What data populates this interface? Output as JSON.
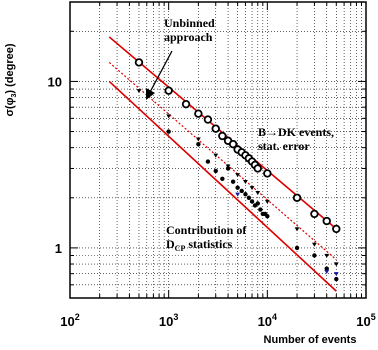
{
  "chart_data": {
    "type": "scatter",
    "xscale": "log",
    "yscale": "log",
    "xlim": [
      100,
      100000
    ],
    "ylim": [
      0.5,
      30
    ],
    "xlabel": "Number of events",
    "ylabel_main": "σ(φ",
    "ylabel_sub": "3",
    "ylabel_tail": ") (degree)",
    "x_ticks": [
      {
        "value": 100,
        "base": "10",
        "exp": "2"
      },
      {
        "value": 1000,
        "base": "10",
        "exp": "3"
      },
      {
        "value": 10000,
        "base": "10",
        "exp": "4"
      },
      {
        "value": 100000,
        "base": "10",
        "exp": "5"
      }
    ],
    "y_ticks": [
      {
        "value": 1,
        "label": "1"
      },
      {
        "value": 10,
        "label": "10"
      }
    ],
    "grid": true,
    "colors": {
      "line": "#dd0000",
      "points": "#000000",
      "blue_points": "#1a1aa8"
    },
    "lines": [
      {
        "name": "",
        "style": "solid",
        "x": [
          250,
          50000
        ],
        "y": [
          18.5,
          1.3
        ]
      },
      {
        "name": "",
        "style": "dotted",
        "x": [
          250,
          50000
        ],
        "y": [
          13.0,
          0.85
        ]
      },
      {
        "name": "",
        "style": "solid",
        "x": [
          250,
          50000
        ],
        "y": [
          10.0,
          0.55
        ]
      }
    ],
    "series": [
      {
        "name": "",
        "marker": "open-circle",
        "x": [
          500,
          1000,
          1500,
          2000,
          2500,
          3000,
          3500,
          4000,
          4500,
          5000,
          5500,
          6000,
          6500,
          7000,
          7500,
          8000,
          10000,
          20000,
          30000,
          40000,
          50000
        ],
        "y": [
          13.0,
          8.8,
          7.3,
          6.4,
          5.9,
          5.2,
          4.7,
          4.4,
          4.2,
          3.9,
          3.75,
          3.6,
          3.45,
          3.3,
          3.15,
          3.0,
          2.8,
          2.0,
          1.6,
          1.45,
          1.3
        ]
      },
      {
        "name": "",
        "marker": "filled-triangle",
        "x": [
          500,
          1000,
          2000,
          3000,
          4000,
          5000,
          6000,
          7000,
          8000,
          10000,
          20000,
          30000,
          40000,
          50000
        ],
        "y": [
          8.8,
          6.2,
          4.5,
          3.6,
          3.1,
          2.75,
          2.5,
          2.3,
          2.15,
          1.9,
          1.3,
          1.05,
          0.9,
          0.8
        ]
      },
      {
        "name": "",
        "marker": "filled-circle",
        "x": [
          1000,
          2000,
          2500,
          3000,
          3500,
          4000,
          4500,
          5000,
          5500,
          6000,
          6500,
          7000,
          7500,
          8000,
          8500,
          9000,
          9500,
          10000,
          20000,
          30000,
          40000,
          50000
        ],
        "y": [
          5.0,
          4.2,
          3.3,
          2.9,
          2.6,
          3.0,
          2.5,
          2.3,
          2.2,
          2.1,
          2.0,
          1.9,
          1.8,
          1.85,
          1.7,
          1.6,
          1.6,
          1.55,
          1.0,
          0.9,
          0.75,
          0.65
        ]
      },
      {
        "name": "",
        "marker": "blue-triangle",
        "x": [
          5000,
          40000,
          50000
        ],
        "y": [
          2.1,
          0.72,
          0.7
        ]
      }
    ],
    "annotations": [
      {
        "id": "unbinned",
        "lines": [
          "Unbinned",
          "approach"
        ]
      },
      {
        "id": "bdk",
        "lines": [
          "B→DK events,",
          "stat. error"
        ]
      },
      {
        "id": "dcp",
        "line1": "Contribution of",
        "line2_main": "D",
        "line2_sub": "CP",
        "line2_tail": " statistics"
      }
    ]
  }
}
